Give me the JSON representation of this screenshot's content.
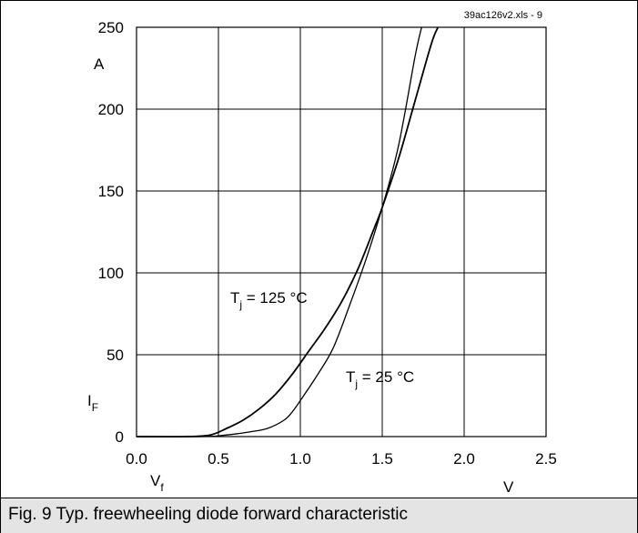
{
  "source_tag": "39ac126v2.xls - 9",
  "caption": "Fig. 9 Typ. freewheeling diode forward characteristic",
  "chart_data": {
    "type": "line",
    "title": "",
    "xlabel": {
      "main": "V",
      "sub": "f"
    },
    "xunit": "V",
    "ylabel": {
      "main": "I",
      "sub": "F"
    },
    "yunit": "A",
    "xlim": [
      0.0,
      2.5
    ],
    "ylim": [
      0,
      250
    ],
    "xticks": [
      "0.0",
      "0.5",
      "1.0",
      "1.5",
      "2.0",
      "2.5"
    ],
    "yticks": [
      "0",
      "50",
      "100",
      "150",
      "200",
      "250"
    ],
    "grid": true,
    "series": [
      {
        "name": "Tj = 125 °C",
        "label": {
          "main": "T",
          "sub": "j",
          "rest": " = 125 °C"
        },
        "color": "#000000",
        "x": [
          0.0,
          0.3,
          0.45,
          0.55,
          0.65,
          0.75,
          0.85,
          0.95,
          1.05,
          1.15,
          1.25,
          1.35,
          1.45,
          1.5,
          1.6,
          1.7,
          1.8,
          1.84
        ],
        "y": [
          0,
          0,
          1,
          5,
          10,
          17,
          26,
          38,
          52,
          66,
          82,
          102,
          127,
          140,
          170,
          205,
          240,
          250
        ]
      },
      {
        "name": "Tj = 25 °C",
        "label": {
          "main": "T",
          "sub": "j",
          "rest": " = 25 °C"
        },
        "color": "#000000",
        "x": [
          0.0,
          0.4,
          0.55,
          0.7,
          0.8,
          0.9,
          0.95,
          1.0,
          1.1,
          1.2,
          1.3,
          1.4,
          1.5,
          1.6,
          1.7,
          1.74
        ],
        "y": [
          0,
          0,
          1,
          3,
          5,
          10,
          15,
          22,
          37,
          54,
          80,
          108,
          140,
          178,
          232,
          250
        ]
      }
    ]
  }
}
